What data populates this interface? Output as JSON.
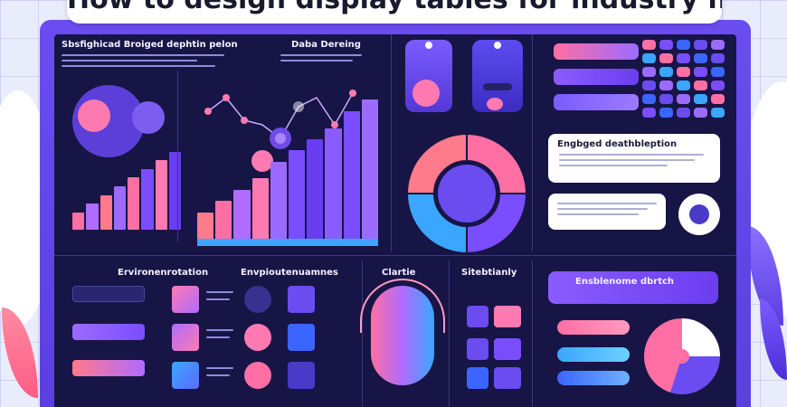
{
  "title": "How to design display tables for industry needs",
  "panels": {
    "sophisticated": "Sbsfighicad Broiged dephtin pelon",
    "data_dashboard": "Daba Dereing",
    "engaged_description": "Engbged deathbleption",
    "environment_left": "Ervironenrotation",
    "environment_right": "Envpioutenuamnes",
    "charts": "Clartie",
    "storytelling": "Sitebtianly",
    "business_dashboard": "Ensblenome dbrtch"
  },
  "colors": {
    "frame": "#5b3fe0",
    "screen": "#171545",
    "pink": "#ff6fa3",
    "purple": "#7a4dff",
    "blue": "#3aa6ff",
    "coral": "#ff7a8a"
  },
  "chart_data": [
    {
      "type": "bar",
      "values": [
        2,
        3,
        4,
        5,
        6,
        7,
        8,
        9
      ],
      "ylim": [
        0,
        10
      ]
    },
    {
      "type": "bar",
      "values": [
        3,
        4,
        5,
        6,
        7.5,
        8.5,
        9.5,
        10.5,
        12,
        13
      ],
      "ylim": [
        0,
        14
      ]
    },
    {
      "type": "pie",
      "values": [
        25,
        25,
        25,
        25
      ]
    }
  ]
}
